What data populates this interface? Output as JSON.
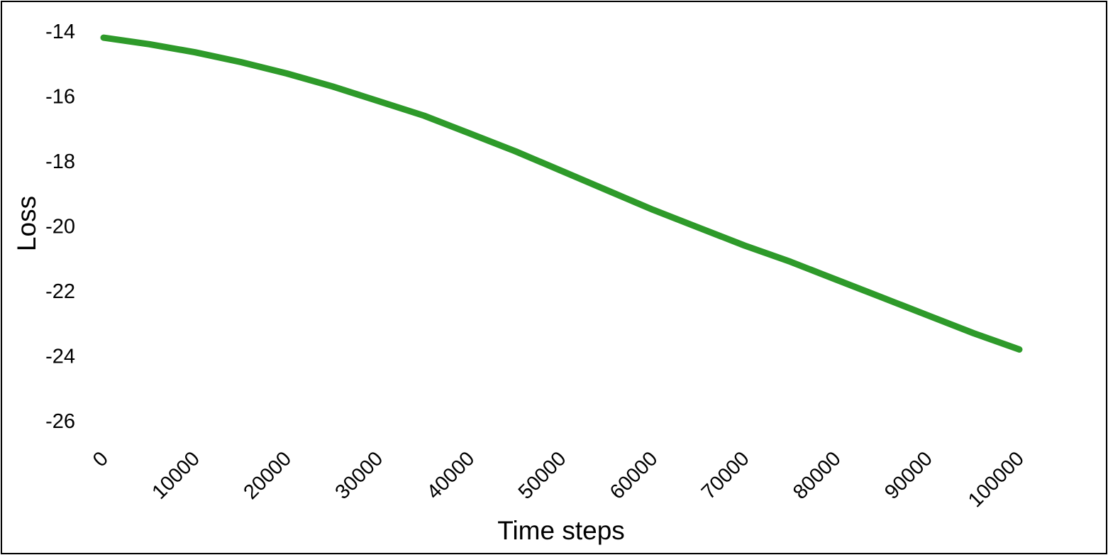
{
  "chart_data": {
    "type": "line",
    "title": "",
    "xlabel": "Time steps",
    "ylabel": "Loss",
    "xlim": [
      0,
      100000
    ],
    "ylim": [
      -26,
      -14
    ],
    "x_ticks": [
      0,
      10000,
      20000,
      30000,
      40000,
      50000,
      60000,
      70000,
      80000,
      90000,
      100000
    ],
    "y_ticks": [
      -14,
      -16,
      -18,
      -20,
      -22,
      -24,
      -26
    ],
    "grid": false,
    "legend": "none",
    "colors": {
      "line": "#2e9a2a",
      "axis_text": "#000000",
      "border": "#000000"
    },
    "series": [
      {
        "x": [
          0,
          5000,
          10000,
          15000,
          20000,
          25000,
          30000,
          35000,
          40000,
          45000,
          50000,
          55000,
          60000,
          65000,
          70000,
          75000,
          80000,
          85000,
          90000,
          95000,
          100000
        ],
        "values": [
          -14.2,
          -14.4,
          -14.65,
          -14.95,
          -15.3,
          -15.7,
          -16.15,
          -16.6,
          -17.15,
          -17.7,
          -18.3,
          -18.9,
          -19.5,
          -20.05,
          -20.6,
          -21.1,
          -21.65,
          -22.2,
          -22.75,
          -23.3,
          -23.8
        ]
      }
    ]
  }
}
